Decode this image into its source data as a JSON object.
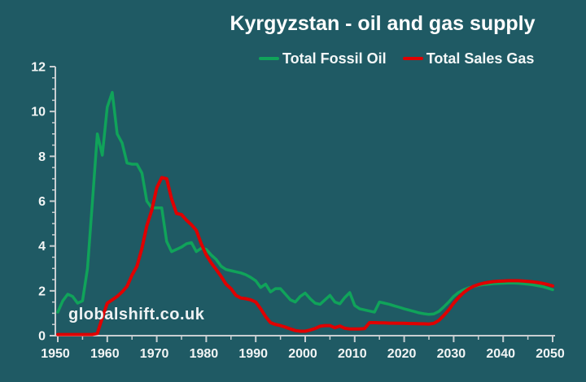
{
  "app": {
    "background": "#1F5A64",
    "text_color": "#FFFFFF"
  },
  "title": "Kyrgyzstan - oil and gas supply",
  "watermark": "globalshift.co.uk",
  "legend": [
    {
      "label": "Total Fossil Oil",
      "color": "#10A35A"
    },
    {
      "label": "Total Sales Gas",
      "color": "#DF0000"
    }
  ],
  "chart_data": {
    "type": "line",
    "title": "Kyrgyzstan - oil and gas supply",
    "xlabel": "",
    "ylabel": "",
    "xlim": [
      1950,
      2050
    ],
    "ylim": [
      0,
      12
    ],
    "x_major_ticks": [
      1950,
      1960,
      1970,
      1980,
      1990,
      2000,
      2010,
      2020,
      2030,
      2040,
      2050
    ],
    "x_minor_step": 5,
    "y_major_ticks": [
      0,
      2,
      4,
      6,
      8,
      10,
      12
    ],
    "y_minor_step": 0.5,
    "grid": false,
    "legend_position": "top-center",
    "axis_color": "#C9CFD2",
    "tick_label_color": "#F2F5F5",
    "series": [
      {
        "name": "Total Fossil Oil",
        "color": "#10A35A",
        "stroke_width": 3.5,
        "x_start": 1950,
        "x_step": 1,
        "values": [
          1.05,
          1.55,
          1.85,
          1.75,
          1.45,
          1.55,
          3.0,
          6.0,
          9.0,
          8.05,
          10.2,
          10.85,
          9.0,
          8.6,
          7.7,
          7.65,
          7.65,
          7.25,
          6.0,
          5.7,
          5.7,
          5.7,
          4.2,
          3.75,
          3.85,
          3.95,
          4.1,
          4.15,
          3.75,
          3.9,
          3.85,
          3.6,
          3.4,
          3.1,
          2.95,
          2.9,
          2.85,
          2.8,
          2.72,
          2.6,
          2.45,
          2.15,
          2.3,
          1.95,
          2.1,
          2.1,
          1.85,
          1.6,
          1.5,
          1.75,
          1.9,
          1.65,
          1.45,
          1.4,
          1.6,
          1.8,
          1.5,
          1.42,
          1.7,
          1.92,
          1.35,
          1.2,
          1.15,
          1.1,
          1.05,
          1.5,
          1.45,
          1.4,
          1.33,
          1.27,
          1.2,
          1.14,
          1.08,
          1.02,
          0.98,
          0.95,
          0.97,
          1.08,
          1.28,
          1.5,
          1.75,
          1.93,
          2.05,
          2.13,
          2.19,
          2.24,
          2.28,
          2.3,
          2.32,
          2.33,
          2.34,
          2.35,
          2.35,
          2.34,
          2.32,
          2.3,
          2.27,
          2.23,
          2.19,
          2.12,
          2.05
        ]
      },
      {
        "name": "Total Sales Gas",
        "color": "#DF0000",
        "stroke_width": 4,
        "x_start": 1950,
        "x_step": 1,
        "values": [
          0.05,
          0.05,
          0.05,
          0.05,
          0.05,
          0.05,
          0.05,
          0.05,
          0.1,
          0.8,
          1.45,
          1.6,
          1.75,
          1.95,
          2.2,
          2.7,
          3.1,
          3.9,
          4.9,
          5.6,
          6.6,
          7.05,
          7.0,
          6.1,
          5.45,
          5.4,
          5.15,
          4.95,
          4.7,
          4.1,
          3.6,
          3.25,
          2.95,
          2.65,
          2.3,
          2.1,
          1.8,
          1.68,
          1.65,
          1.6,
          1.5,
          1.2,
          0.85,
          0.58,
          0.5,
          0.45,
          0.38,
          0.3,
          0.23,
          0.2,
          0.2,
          0.25,
          0.32,
          0.42,
          0.45,
          0.45,
          0.35,
          0.43,
          0.33,
          0.3,
          0.3,
          0.3,
          0.32,
          0.58,
          0.58,
          0.57,
          0.57,
          0.56,
          0.56,
          0.55,
          0.55,
          0.54,
          0.54,
          0.53,
          0.53,
          0.52,
          0.55,
          0.68,
          0.9,
          1.15,
          1.45,
          1.7,
          1.92,
          2.08,
          2.2,
          2.28,
          2.34,
          2.38,
          2.41,
          2.43,
          2.44,
          2.45,
          2.45,
          2.45,
          2.44,
          2.42,
          2.4,
          2.37,
          2.33,
          2.28,
          2.22
        ]
      }
    ]
  }
}
